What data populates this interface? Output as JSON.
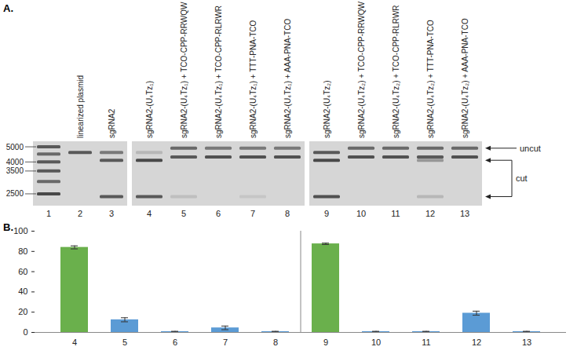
{
  "figure": {
    "panel_labels": [
      "A.",
      "B."
    ]
  },
  "gel": {
    "ladder_labels": [
      5000,
      4000,
      3500,
      2500
    ],
    "pieces": [
      [
        "1",
        "2",
        "3"
      ],
      [
        "4",
        "5",
        "6",
        "7",
        "8"
      ],
      [
        "9",
        "10",
        "11",
        "12",
        "13"
      ]
    ],
    "lanes": [
      {
        "number": "1",
        "bands": [
          {
            "bp": 5000,
            "strength": 0.8
          },
          {
            "bp": 4500,
            "strength": 0.7
          },
          {
            "bp": 4000,
            "strength": 0.8
          },
          {
            "bp": 3500,
            "strength": 0.8
          },
          {
            "bp": 3000,
            "strength": 0.7
          },
          {
            "bp": 2500,
            "strength": 0.9
          }
        ]
      },
      {
        "number": "2",
        "label": "linearized plasmid",
        "bands": [
          {
            "bp": 4600,
            "strength": 0.8
          }
        ]
      },
      {
        "number": "3",
        "label": "sgRNA2",
        "bands": [
          {
            "bp": 4600,
            "strength": 0.6
          },
          {
            "bp": 4100,
            "strength": 0.8
          },
          {
            "bp": 2400,
            "strength": 0.8
          }
        ]
      },
      {
        "number": "4",
        "label": "sgRNA2-(U₄Tz₁)",
        "bands": [
          {
            "bp": 4600,
            "strength": 0.2
          },
          {
            "bp": 4100,
            "strength": 0.9
          },
          {
            "bp": 2400,
            "strength": 0.8
          }
        ]
      },
      {
        "number": "5",
        "label": "sgRNA2-(U₄Tz₁) + TCO-CPP-RRWQW",
        "bands": [
          {
            "bp": 4900,
            "strength": 0.7
          },
          {
            "bp": 4300,
            "strength": 0.8
          },
          {
            "bp": 2400,
            "strength": 0.15
          }
        ]
      },
      {
        "number": "6",
        "label": "sgRNA2-(U₄Tz₁) + TCO-CPP-RLRWR",
        "bands": [
          {
            "bp": 4900,
            "strength": 0.6
          },
          {
            "bp": 4300,
            "strength": 0.85
          }
        ]
      },
      {
        "number": "7",
        "label": "sgRNA2-(U₄Tz₁) + TTT-PNA-TCO",
        "bands": [
          {
            "bp": 4900,
            "strength": 0.6
          },
          {
            "bp": 4300,
            "strength": 0.85
          },
          {
            "bp": 2400,
            "strength": 0.1
          }
        ]
      },
      {
        "number": "8",
        "label": "sgRNA2-(U₄Tz₁) + AAA-PNA-TCO",
        "bands": [
          {
            "bp": 4900,
            "strength": 0.6
          },
          {
            "bp": 4300,
            "strength": 0.85
          }
        ]
      },
      {
        "number": "9",
        "label": "sgRNA2-(U₄Tz₂)",
        "bands": [
          {
            "bp": 4600,
            "strength": 0.8
          },
          {
            "bp": 4100,
            "strength": 0.9
          },
          {
            "bp": 2400,
            "strength": 0.85
          }
        ]
      },
      {
        "number": "10",
        "label": "sgRNA2-(U₄Tz₂) + TCO-CPP-RRWQW",
        "bands": [
          {
            "bp": 4900,
            "strength": 0.7
          },
          {
            "bp": 4300,
            "strength": 0.85
          }
        ]
      },
      {
        "number": "11",
        "label": "sgRNA2-(U₄Tz₂) + TCO-CPP-RLRWR",
        "bands": [
          {
            "bp": 4900,
            "strength": 0.7
          },
          {
            "bp": 4300,
            "strength": 0.85
          }
        ]
      },
      {
        "number": "12",
        "label": "sgRNA2-(U₄Tz₂) + TTT-PNA-TCO",
        "bands": [
          {
            "bp": 4900,
            "strength": 0.7
          },
          {
            "bp": 4300,
            "strength": 0.8
          },
          {
            "bp": 4100,
            "strength": 0.4
          },
          {
            "bp": 2400,
            "strength": 0.2
          }
        ]
      },
      {
        "number": "13",
        "label": "sgRNA2-(U₄Tz₂) + AAA-PNA-TCO",
        "bands": [
          {
            "bp": 4900,
            "strength": 0.7
          },
          {
            "bp": 4300,
            "strength": 0.85
          }
        ]
      }
    ],
    "annotations": [
      {
        "text": "uncut",
        "bp": [
          4900
        ]
      },
      {
        "text": "cut",
        "bp": [
          4100,
          2400
        ]
      }
    ]
  },
  "chart_data": {
    "type": "bar",
    "categories": [
      "4",
      "5",
      "6",
      "7",
      "8",
      "9",
      "10",
      "11",
      "12",
      "13"
    ],
    "values": [
      84,
      12.5,
      0.8,
      4.5,
      0.8,
      87.5,
      0.8,
      0.8,
      19,
      0.8
    ],
    "errors": [
      1.5,
      2,
      0.3,
      1.8,
      0.3,
      0.7,
      0.3,
      0.3,
      2,
      0.3
    ],
    "colors": [
      "#6ab04c",
      "#5b9bd5",
      "#5b9bd5",
      "#5b9bd5",
      "#5b9bd5",
      "#6ab04c",
      "#5b9bd5",
      "#5b9bd5",
      "#5b9bd5",
      "#5b9bd5"
    ],
    "ylim": [
      0,
      100
    ],
    "yticks": [
      0,
      20,
      40,
      60,
      80,
      100
    ],
    "grid": false
  }
}
